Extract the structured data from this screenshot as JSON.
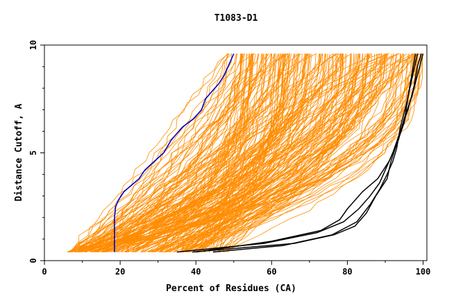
{
  "chart_data": {
    "type": "line",
    "title": "T1083-D1",
    "xlabel": "Percent of Residues (CA)",
    "ylabel": "Distance Cutoff, A",
    "xlim": [
      0,
      101
    ],
    "ylim": [
      0,
      10
    ],
    "x_ticks": [
      "0",
      "20",
      "40",
      "60",
      "80",
      "100"
    ],
    "y_ticks": [
      "0",
      "5",
      "10"
    ],
    "grid": false,
    "legend": "none",
    "colors": {
      "background_models": "#ff8c00",
      "highlight_model": "#0000cc",
      "reference_models": "#000000"
    },
    "series": [
      {
        "role": "highlight",
        "x": [
          18.5,
          18.5,
          18.8,
          19.5,
          21.0,
          23.0,
          25.0,
          26.5,
          29.0,
          31.5,
          33.5,
          36.5,
          39.5,
          41.5,
          42.5,
          44.0,
          46.0,
          47.5,
          49.0,
          50.0
        ],
        "y": [
          0.4,
          2.0,
          2.5,
          2.8,
          3.2,
          3.5,
          3.8,
          4.2,
          4.6,
          5.0,
          5.6,
          6.2,
          6.6,
          7.0,
          7.5,
          7.8,
          8.2,
          8.6,
          9.2,
          9.6
        ]
      },
      {
        "role": "reference",
        "x": [
          35.0,
          58.0,
          72.0,
          79.0,
          83.0,
          86.0,
          88.5,
          90.0,
          92.0,
          94.0,
          96.0,
          97.5,
          98.5,
          99.5
        ],
        "y": [
          0.4,
          0.8,
          1.3,
          1.8,
          2.4,
          3.0,
          3.6,
          4.2,
          5.0,
          6.0,
          7.0,
          8.0,
          9.0,
          9.6
        ]
      },
      {
        "role": "reference",
        "x": [
          44.5,
          63.0,
          76.0,
          82.5,
          86.0,
          88.5,
          90.5,
          92.0,
          93.0,
          94.0,
          95.5,
          97.0,
          98.5
        ],
        "y": [
          0.4,
          0.7,
          1.2,
          1.8,
          2.6,
          3.3,
          4.0,
          4.6,
          5.2,
          6.2,
          7.2,
          8.4,
          9.6
        ]
      },
      {
        "role": "reference",
        "x": [
          40.0,
          60.0,
          73.0,
          78.0,
          80.0,
          84.0,
          88.0,
          91.0,
          93.5,
          95.0,
          97.0,
          98.5,
          100.0
        ],
        "y": [
          0.4,
          0.9,
          1.4,
          1.9,
          2.4,
          3.2,
          3.8,
          4.6,
          5.6,
          6.6,
          7.6,
          8.6,
          9.6
        ]
      },
      {
        "role": "reference",
        "x": [
          39.0,
          66.0,
          76.5,
          82.0,
          85.0,
          87.5,
          90.5,
          91.5,
          93.0,
          95.0,
          96.0,
          98.0
        ],
        "y": [
          0.4,
          0.8,
          1.2,
          1.6,
          2.2,
          3.0,
          3.8,
          4.6,
          5.4,
          6.4,
          7.6,
          9.6
        ]
      }
    ]
  }
}
